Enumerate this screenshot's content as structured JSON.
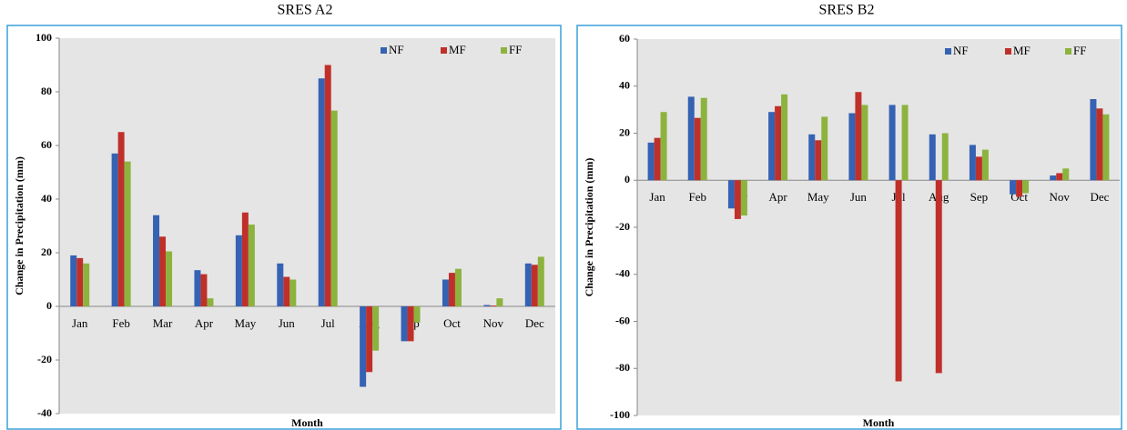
{
  "chart_data": [
    {
      "type": "bar",
      "title": "SRES A2",
      "x_label": "Month",
      "y_label": "Change in Precipitation (mm)",
      "categories": [
        "Jan",
        "Feb",
        "Mar",
        "Apr",
        "May",
        "Jun",
        "Jul",
        "Aug",
        "Sep",
        "Oct",
        "Nov",
        "Dec"
      ],
      "series": [
        {
          "name": "NF",
          "color": "#3562b3",
          "values": [
            19,
            57,
            34,
            13.5,
            26.5,
            16,
            85,
            -30,
            -13,
            10,
            0.5,
            16
          ]
        },
        {
          "name": "MF",
          "color": "#c0302b",
          "values": [
            18,
            65,
            26,
            12,
            35,
            11,
            90,
            -24.5,
            -13,
            12.5,
            0.3,
            15.5
          ]
        },
        {
          "name": "FF",
          "color": "#8db33f",
          "values": [
            16,
            54,
            20.5,
            3,
            30.5,
            10,
            73,
            -16.5,
            -6,
            14,
            3,
            18.5
          ]
        }
      ],
      "ylim": [
        -40,
        100
      ],
      "yticks": [
        -40,
        -20,
        0,
        20,
        40,
        60,
        80,
        100
      ],
      "grid": false,
      "legend": "top-right"
    },
    {
      "type": "bar",
      "title": "SRES B2",
      "x_label": "Month",
      "y_label": "Change in Precipitation (mm)",
      "categories": [
        "Jan",
        "Feb",
        "Mar",
        "Apr",
        "May",
        "Jun",
        "Jul",
        "Aug",
        "Sep",
        "Oct",
        "Nov",
        "Dec"
      ],
      "series": [
        {
          "name": "NF",
          "color": "#3562b3",
          "values": [
            16,
            35.5,
            -12,
            29,
            19.5,
            28.5,
            32,
            19.5,
            15,
            -6,
            2,
            34.5
          ]
        },
        {
          "name": "MF",
          "color": "#c0302b",
          "values": [
            18,
            26.5,
            -16.5,
            31.5,
            17,
            37.5,
            -85.5,
            -82,
            10,
            -7,
            3,
            30.5
          ]
        },
        {
          "name": "FF",
          "color": "#8db33f",
          "values": [
            29,
            35,
            -15,
            36.5,
            27,
            32,
            32,
            20,
            13,
            -5.5,
            5,
            28
          ]
        }
      ],
      "ylim": [
        -100,
        60
      ],
      "yticks": [
        -100,
        -80,
        -60,
        -40,
        -20,
        0,
        20,
        40,
        60
      ],
      "grid": false,
      "legend": "top-right"
    }
  ]
}
